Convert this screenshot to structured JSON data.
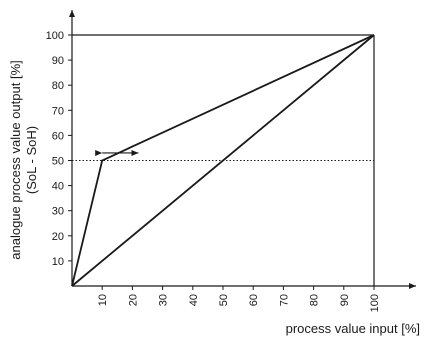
{
  "chart_data": {
    "type": "line",
    "xlabel": "process value input [%]",
    "ylabel_line1": "analogue process value output [%]",
    "ylabel_line2": "(SoL - SoH)",
    "xlim": [
      0,
      100
    ],
    "ylim": [
      0,
      100
    ],
    "x_ticks": [
      10,
      20,
      30,
      40,
      50,
      60,
      70,
      80,
      90,
      100
    ],
    "y_ticks": [
      10,
      20,
      30,
      40,
      50,
      60,
      70,
      80,
      90,
      100
    ],
    "grid": false,
    "series": [
      {
        "x": [
          0,
          100
        ],
        "y": [
          0,
          100
        ]
      },
      {
        "x": [
          0,
          10,
          100
        ],
        "y": [
          0,
          50,
          100
        ]
      }
    ],
    "reference_lines": [
      {
        "orientation": "horizontal",
        "y": 50,
        "style": "dotted"
      },
      {
        "orientation": "horizontal",
        "y": 100,
        "style": "solid"
      },
      {
        "orientation": "vertical",
        "x": 100,
        "style": "solid"
      }
    ],
    "annotations": [
      {
        "type": "double-arrow",
        "y": 53,
        "x_from": 10,
        "x_to": 22
      }
    ]
  }
}
